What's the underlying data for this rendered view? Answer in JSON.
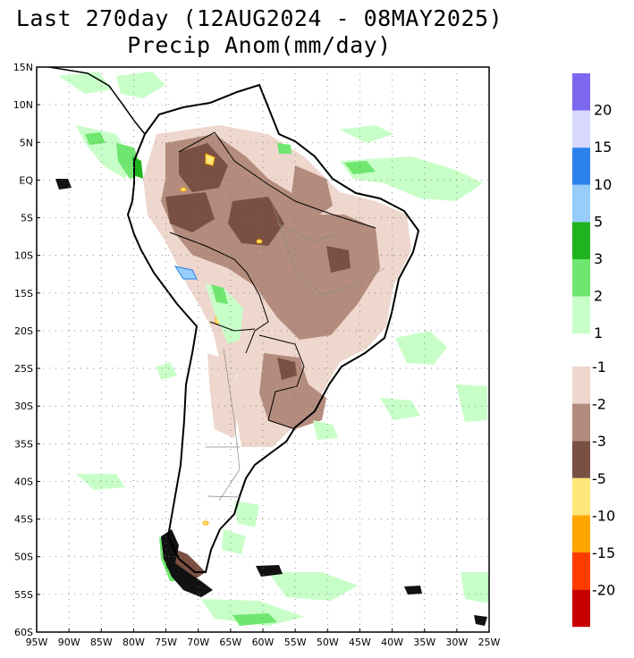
{
  "title": {
    "line1": "Last 270day (12AUG2024 - 08MAY2025)",
    "line2": "Precip Anom(mm/day)"
  },
  "map": {
    "lat_labels": [
      "15N",
      "10N",
      "5N",
      "EQ",
      "5S",
      "10S",
      "15S",
      "20S",
      "25S",
      "30S",
      "35S",
      "40S",
      "45S",
      "50S",
      "55S",
      "60S"
    ],
    "lon_labels": [
      "95W",
      "90W",
      "85W",
      "80W",
      "75W",
      "70W",
      "65W",
      "60W",
      "55W",
      "50W",
      "45W",
      "40W",
      "35W",
      "30W",
      "25W"
    ],
    "extent": {
      "lon_min": -95,
      "lon_max": -25,
      "lat_min": -60,
      "lat_max": 15
    }
  },
  "legend": {
    "wet": {
      "colors": [
        "#7b68ee",
        "#d8d8ff",
        "#2b82ee",
        "#96cdfa",
        "#1fb41f",
        "#6fe66f",
        "#c8ffc8"
      ],
      "labels": [
        "20",
        "15",
        "10",
        "5",
        "3",
        "2",
        "1"
      ]
    },
    "dry": {
      "colors": [
        "#eed7cd",
        "#b48c7d",
        "#7a5043",
        "#ffe678",
        "#ffa500",
        "#ff3c00",
        "#c80000"
      ],
      "labels": [
        "-1",
        "-2",
        "-3",
        "-5",
        "-10",
        "-15",
        "-20"
      ]
    }
  }
}
